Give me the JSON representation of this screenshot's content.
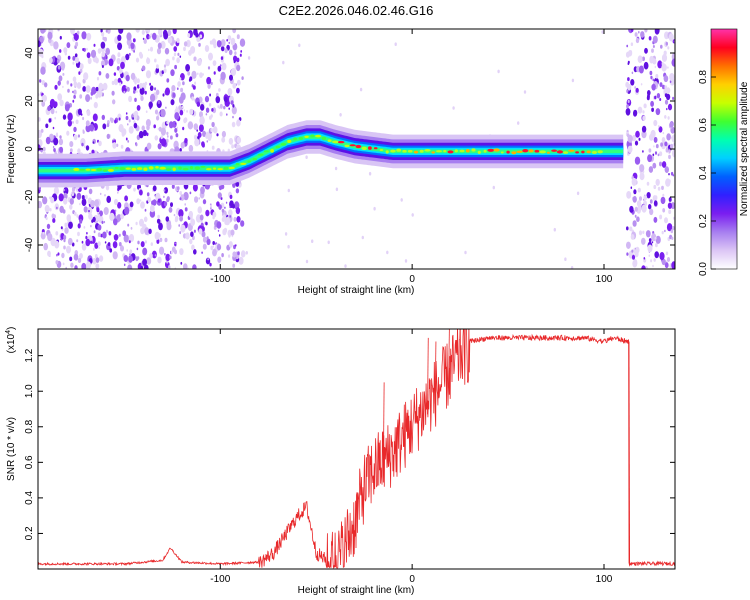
{
  "chart_data": [
    {
      "type": "heatmap",
      "title": "C2E2.2026.046.02.46.G16",
      "xlabel": "Height of straight line (km)",
      "ylabel": "Frequency (Hz)",
      "xlim": [
        -195,
        137
      ],
      "ylim": [
        -50,
        50
      ],
      "xticks": [
        -100,
        0,
        100
      ],
      "xtick_labels": [
        "-100",
        "0",
        "100"
      ],
      "yticks": [
        -40,
        -20,
        0,
        20,
        40
      ],
      "ytick_labels": [
        "-40",
        "-20",
        "0",
        "20",
        "40"
      ],
      "colorbar": {
        "label": "Normalized spectral amplitude",
        "range": [
          0,
          1
        ],
        "ticks": [
          0.0,
          0.2,
          0.4,
          0.6,
          0.8
        ],
        "tick_labels": [
          "0.0",
          "0.2",
          "0.4",
          "0.6",
          "0.8"
        ],
        "colors": [
          "#ffffff",
          "#dcc6f5",
          "#a77ef0",
          "#7a1ef0",
          "#3020ff",
          "#0060ff",
          "#00d0ff",
          "#00ffb0",
          "#40ff30",
          "#c8ff00",
          "#ffd000",
          "#ff7000",
          "#ff0020",
          "#ff33aa"
        ]
      },
      "ridge": {
        "x": [
          -195,
          -170,
          -150,
          -130,
          -110,
          -95,
          -85,
          -75,
          -65,
          -55,
          -48,
          -40,
          -30,
          -20,
          -10,
          0,
          10,
          20,
          40,
          60,
          80,
          95,
          110
        ],
        "y": [
          -9,
          -9,
          -8,
          -8,
          -8,
          -8,
          -5,
          -1,
          3,
          5,
          5,
          3,
          1,
          0,
          -1,
          -1,
          -1,
          -1,
          -1,
          -1,
          -1,
          -1,
          -1
        ]
      },
      "bands": [
        {
          "x_start": -195,
          "x_end": -88,
          "note": "broadband noise"
        },
        {
          "x_start": 112,
          "x_end": 137,
          "note": "broadband noise"
        }
      ]
    },
    {
      "type": "line",
      "xlabel": "Height of straight line (km)",
      "ylabel": "SNR (10 * v/v)",
      "y_multiplier": "(x10",
      "y_multiplier_exp": "4",
      "xlim": [
        -195,
        137
      ],
      "ylim": [
        0,
        1.35
      ],
      "xticks": [
        -100,
        0,
        100
      ],
      "xtick_labels": [
        "-100",
        "0",
        "100"
      ],
      "yticks": [
        0.2,
        0.4,
        0.6,
        0.8,
        1.0,
        1.2
      ],
      "ytick_labels": [
        "0.2",
        "0.4",
        "0.6",
        "0.8",
        "1.0",
        "1.2"
      ],
      "color": "#e8282a",
      "envelope": {
        "x": [
          -195,
          -150,
          -130,
          -126,
          -120,
          -100,
          -80,
          -72,
          -66,
          -60,
          -55,
          -50,
          -44,
          -38,
          -30,
          -25,
          -20,
          -10,
          0,
          10,
          20,
          25,
          30,
          40,
          50,
          60,
          70,
          80,
          90,
          100,
          105,
          112
        ],
        "y": [
          0.03,
          0.03,
          0.05,
          0.12,
          0.04,
          0.03,
          0.04,
          0.1,
          0.2,
          0.3,
          0.36,
          0.1,
          0.05,
          0.1,
          0.3,
          0.5,
          0.6,
          0.7,
          0.85,
          1.0,
          1.15,
          1.25,
          1.28,
          1.3,
          1.3,
          1.3,
          1.3,
          1.3,
          1.3,
          1.28,
          1.3,
          1.28
        ]
      },
      "spikes": [
        {
          "x": 8,
          "y": 1.3
        },
        {
          "x": 12,
          "y": 1.28
        },
        {
          "x": 19,
          "y": 1.35
        },
        {
          "x": -15,
          "y": 1.05
        }
      ],
      "drop_x": 113,
      "tail_value": 0.03
    }
  ]
}
